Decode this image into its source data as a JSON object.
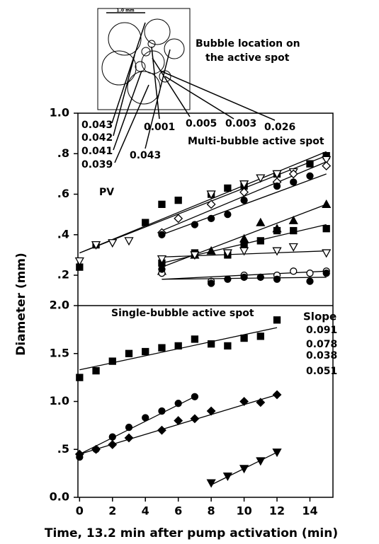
{
  "inset": {
    "scale_label": "1.0 mm"
  },
  "chart_data": [
    {
      "type": "scatter",
      "ylabel": "Diameter (mm)",
      "xlim": [
        -0.1,
        15.4
      ],
      "ylim": [
        0.05,
        1.0
      ],
      "yticks": [
        {
          "value": 0.2,
          "label": ".2"
        },
        {
          "value": 0.4,
          "label": ".4"
        },
        {
          "value": 0.6,
          "label": ".6"
        },
        {
          "value": 0.8,
          "label": ".8"
        },
        {
          "value": 1.0,
          "label": "1.0"
        }
      ],
      "annotations": [
        "Bubble location on",
        "the active spot",
        "0.043",
        "0.042",
        "0.041",
        "0.039",
        "0.001",
        "0.043",
        "0.005",
        "0.003",
        "0.026",
        "Multi-bubble active spot",
        "PV"
      ],
      "series": [
        {
          "marker": "square",
          "filled": true,
          "color": "#000000",
          "x": [
            0,
            1,
            4,
            5,
            6,
            8,
            9,
            10,
            12,
            14,
            15
          ],
          "values": [
            0.24,
            0.35,
            0.46,
            0.55,
            0.57,
            0.6,
            0.63,
            0.64,
            0.7,
            0.75,
            0.79
          ],
          "fit": {
            "x": [
              0,
              15
            ],
            "values": [
              0.31,
              0.81
            ]
          }
        },
        {
          "marker": "triangle-down",
          "filled": false,
          "color": "#000000",
          "x": [
            0,
            1,
            2,
            3,
            8,
            10,
            11,
            12,
            13,
            15
          ],
          "values": [
            0.27,
            0.35,
            0.36,
            0.37,
            0.6,
            0.65,
            0.68,
            0.7,
            0.71,
            0.77
          ],
          "fit": {
            "x": [
              0,
              15
            ],
            "values": [
              0.31,
              0.79
            ]
          }
        },
        {
          "marker": "diamond",
          "filled": false,
          "color": "#000000",
          "x": [
            5,
            6,
            8,
            10,
            12,
            13,
            15
          ],
          "values": [
            0.41,
            0.48,
            0.55,
            0.61,
            0.66,
            0.7,
            0.74
          ],
          "fit": {
            "x": [
              5,
              15
            ],
            "values": [
              0.42,
              0.76
            ]
          }
        },
        {
          "marker": "circle",
          "filled": true,
          "color": "#000000",
          "x": [
            5,
            7,
            8,
            9,
            10,
            12,
            13,
            14
          ],
          "values": [
            0.4,
            0.45,
            0.48,
            0.5,
            0.57,
            0.64,
            0.66,
            0.69
          ],
          "fit": {
            "x": [
              5,
              15
            ],
            "values": [
              0.4,
              0.7
            ]
          }
        },
        {
          "marker": "triangle-up",
          "filled": true,
          "color": "#000000",
          "x": [
            5,
            7,
            8,
            10,
            11,
            12,
            13,
            15
          ],
          "values": [
            0.22,
            0.3,
            0.32,
            0.38,
            0.46,
            0.43,
            0.47,
            0.55
          ],
          "fit": {
            "x": [
              5,
              15
            ],
            "values": [
              0.24,
              0.55
            ]
          }
        },
        {
          "marker": "square",
          "filled": true,
          "color": "#000000",
          "x": [
            5,
            7,
            9,
            10,
            11,
            12,
            13,
            15
          ],
          "values": [
            0.26,
            0.31,
            0.3,
            0.35,
            0.37,
            0.42,
            0.42,
            0.43
          ],
          "fit": {
            "x": [
              5,
              15
            ],
            "values": [
              0.26,
              0.45
            ]
          }
        },
        {
          "marker": "triangle-down",
          "filled": false,
          "color": "#000000",
          "x": [
            5,
            7,
            9,
            10,
            12,
            13,
            15
          ],
          "values": [
            0.28,
            0.3,
            0.31,
            0.32,
            0.32,
            0.34,
            0.31
          ],
          "fit": {
            "x": [
              5,
              15
            ],
            "values": [
              0.29,
              0.32
            ]
          }
        },
        {
          "marker": "circle",
          "filled": false,
          "color": "#000000",
          "x": [
            5,
            8,
            10,
            12,
            13,
            14,
            15
          ],
          "values": [
            0.21,
            0.17,
            0.2,
            0.2,
            0.22,
            0.21,
            0.22
          ],
          "fit": {
            "x": [
              5,
              15
            ],
            "values": [
              0.18,
              0.22
            ]
          }
        },
        {
          "marker": "circle",
          "filled": true,
          "color": "#000000",
          "x": [
            5,
            8,
            9,
            10,
            11,
            12,
            14,
            15
          ],
          "values": [
            0.23,
            0.16,
            0.18,
            0.19,
            0.19,
            0.18,
            0.17,
            0.21
          ],
          "fit": {
            "x": [
              5,
              15
            ],
            "values": [
              0.18,
              0.19
            ]
          }
        }
      ]
    },
    {
      "type": "scatter",
      "xlabel": "Time, 13.2 min after pump activation (min)",
      "xlim": [
        -0.1,
        15.4
      ],
      "ylim": [
        0,
        2.0
      ],
      "xticks": [
        0,
        2,
        4,
        6,
        8,
        10,
        12,
        14
      ],
      "yticks": [
        {
          "value": 0,
          "label": "0.0"
        },
        {
          "value": 0.5,
          "label": ".5"
        },
        {
          "value": 1.0,
          "label": "1.0"
        },
        1.5,
        {
          "value": 2.0,
          "label": "2.0"
        }
      ],
      "annotations": [
        "Single-bubble active spot",
        "Slope",
        "0.091",
        "0.078",
        "0.038",
        "0.051"
      ],
      "series": [
        {
          "marker": "square",
          "filled": true,
          "color": "#000000",
          "x": [
            0,
            1,
            2,
            3,
            4,
            5,
            6,
            7,
            8,
            9,
            10,
            11,
            12
          ],
          "values": [
            1.25,
            1.32,
            1.42,
            1.5,
            1.52,
            1.56,
            1.58,
            1.65,
            1.6,
            1.58,
            1.66,
            1.68,
            1.85
          ],
          "fit": {
            "x": [
              0,
              12
            ],
            "values": [
              1.33,
              1.77
            ]
          }
        },
        {
          "marker": "circle",
          "filled": true,
          "color": "#000000",
          "x": [
            0,
            1,
            2,
            3,
            4,
            5,
            6,
            7
          ],
          "values": [
            0.42,
            0.5,
            0.63,
            0.73,
            0.83,
            0.9,
            0.98,
            1.05
          ],
          "fit": {
            "x": [
              0,
              7
            ],
            "values": [
              0.45,
              1.05
            ]
          }
        },
        {
          "marker": "diamond",
          "filled": true,
          "color": "#000000",
          "x": [
            0,
            1,
            2,
            3,
            5,
            6,
            7,
            8,
            10,
            11,
            12
          ],
          "values": [
            0.45,
            0.5,
            0.55,
            0.62,
            0.7,
            0.8,
            0.82,
            0.9,
            1.0,
            0.99,
            1.07
          ],
          "fit": {
            "x": [
              0,
              12
            ],
            "values": [
              0.45,
              1.07
            ]
          }
        },
        {
          "marker": "triangle-down",
          "filled": true,
          "color": "#000000",
          "x": [
            8,
            9,
            10,
            11,
            12
          ],
          "values": [
            0.15,
            0.22,
            0.3,
            0.38,
            0.47
          ],
          "fit": {
            "x": [
              8,
              12
            ],
            "values": [
              0.13,
              0.47
            ]
          }
        }
      ]
    }
  ]
}
